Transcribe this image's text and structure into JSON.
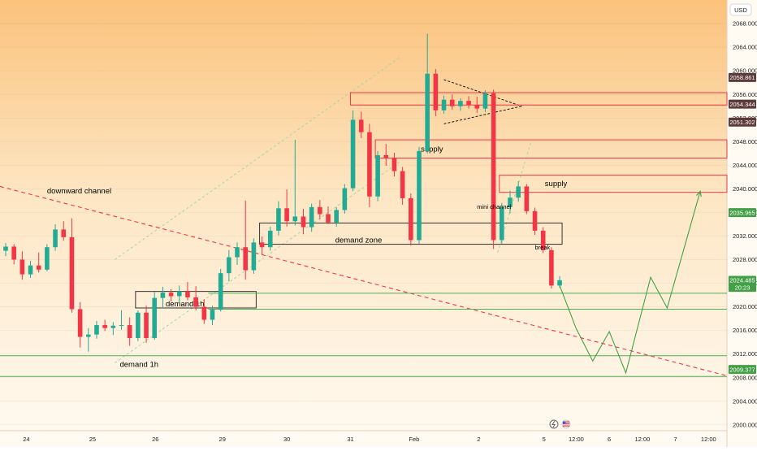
{
  "currency_label": "USD",
  "colors": {
    "up": "#22ab94",
    "down": "#f23645",
    "supply": "#f23645",
    "demand": "#4caf50",
    "channel": "#a5d6a7",
    "downward_channel": "#f23645",
    "price_badge_dark": "#5d3a3a",
    "price_badge_green": "#43a047"
  },
  "chart_data": {
    "type": "candlestick",
    "y_range": [
      1999,
      2072
    ],
    "y_ticks": [
      "2068.000",
      "2064.000",
      "2060.000",
      "2056.000",
      "2052.000",
      "2048.000",
      "2044.000",
      "2040.000",
      "2036.000",
      "2032.000",
      "2028.000",
      "2024.000",
      "2020.000",
      "2016.000",
      "2012.000",
      "2008.000",
      "2004.000",
      "2000.000"
    ],
    "x_ticks": [
      "24",
      "25",
      "26",
      "29",
      "30",
      "31",
      "Feb",
      "2",
      "5",
      "12:00",
      "6",
      "12:00",
      "7",
      "12:00"
    ],
    "price_badges": [
      {
        "label": "2058.861",
        "value": 2058.861,
        "style": "dark"
      },
      {
        "label": "2054.344",
        "value": 2054.344,
        "style": "dark"
      },
      {
        "label": "2051.302",
        "value": 2051.302,
        "style": "dark"
      },
      {
        "label": "2035.965",
        "value": 2035.965,
        "style": "green"
      },
      {
        "label": "2024.485",
        "value": 2024.485,
        "style": "green"
      },
      {
        "label": "20:23",
        "value": 2023.3,
        "style": "green"
      },
      {
        "label": "2009.377",
        "value": 2009.377,
        "style": "green"
      }
    ],
    "zones": [
      {
        "label": "",
        "kind": "supply",
        "from_index": 42,
        "y_top": 2056.3,
        "y_bottom": 2054.2
      },
      {
        "label": "supply",
        "kind": "supply",
        "from_index": 45,
        "y_top": 2048.3,
        "y_bottom": 2045.2
      },
      {
        "label": "supply",
        "kind": "supply",
        "from_index": 60,
        "y_top": 2042.3,
        "y_bottom": 2039.4
      },
      {
        "label": "demand zone",
        "kind": "neutral",
        "from_index": 31,
        "to_index": 67,
        "y_top": 2034.2,
        "y_bottom": 2030.6
      },
      {
        "label": "demand 1h",
        "kind": "neutral",
        "from_index": 16,
        "to_index": 30,
        "y_top": 2022.6,
        "y_bottom": 2019.8
      }
    ],
    "horizontal_lines": [
      {
        "label": "",
        "value": 2022.3,
        "kind": "demand"
      },
      {
        "label": "",
        "value": 2019.6,
        "kind": "demand"
      },
      {
        "label": "",
        "value": 2011.7,
        "kind": "demand"
      },
      {
        "label": "demand 1h",
        "value": 2008.2,
        "kind": "demand"
      }
    ],
    "annotations": [
      {
        "text": "downward channel",
        "index": 5,
        "value": 2039.2
      },
      {
        "text": "mini channel",
        "index": 57,
        "value": 2036.6
      },
      {
        "text": "break",
        "index": 64,
        "value": 2029.7
      }
    ],
    "candles": [
      {
        "o": 2029.5,
        "h": 2030.8,
        "l": 2028.6,
        "c": 2030.2
      },
      {
        "o": 2030.2,
        "h": 2030.6,
        "l": 2027.2,
        "c": 2028.0
      },
      {
        "o": 2028.0,
        "h": 2029.4,
        "l": 2024.6,
        "c": 2025.5
      },
      {
        "o": 2025.5,
        "h": 2027.8,
        "l": 2024.9,
        "c": 2027.0
      },
      {
        "o": 2027.0,
        "h": 2029.2,
        "l": 2025.8,
        "c": 2026.3
      },
      {
        "o": 2026.3,
        "h": 2030.6,
        "l": 2026.0,
        "c": 2030.1
      },
      {
        "o": 2030.1,
        "h": 2034.0,
        "l": 2029.5,
        "c": 2033.1
      },
      {
        "o": 2033.1,
        "h": 2034.5,
        "l": 2031.2,
        "c": 2031.8
      },
      {
        "o": 2031.8,
        "h": 2035.0,
        "l": 2019.0,
        "c": 2019.6
      },
      {
        "o": 2019.6,
        "h": 2020.8,
        "l": 2013.1,
        "c": 2014.9
      },
      {
        "o": 2014.9,
        "h": 2016.4,
        "l": 2012.4,
        "c": 2015.3
      },
      {
        "o": 2015.3,
        "h": 2017.6,
        "l": 2014.6,
        "c": 2016.9
      },
      {
        "o": 2016.9,
        "h": 2017.8,
        "l": 2015.9,
        "c": 2016.4
      },
      {
        "o": 2016.4,
        "h": 2017.4,
        "l": 2015.2,
        "c": 2016.8
      },
      {
        "o": 2016.8,
        "h": 2019.4,
        "l": 2016.1,
        "c": 2016.9
      },
      {
        "o": 2016.9,
        "h": 2018.2,
        "l": 2013.4,
        "c": 2014.7
      },
      {
        "o": 2014.7,
        "h": 2019.4,
        "l": 2014.2,
        "c": 2019.0
      },
      {
        "o": 2019.0,
        "h": 2020.2,
        "l": 2013.9,
        "c": 2014.7
      },
      {
        "o": 2014.7,
        "h": 2022.5,
        "l": 2014.4,
        "c": 2021.5
      },
      {
        "o": 2021.5,
        "h": 2023.4,
        "l": 2019.7,
        "c": 2022.4
      },
      {
        "o": 2022.4,
        "h": 2023.0,
        "l": 2020.9,
        "c": 2021.8
      },
      {
        "o": 2021.8,
        "h": 2023.6,
        "l": 2020.6,
        "c": 2022.6
      },
      {
        "o": 2022.6,
        "h": 2024.2,
        "l": 2021.1,
        "c": 2021.6
      },
      {
        "o": 2021.6,
        "h": 2023.5,
        "l": 2019.4,
        "c": 2020.0
      },
      {
        "o": 2020.0,
        "h": 2021.3,
        "l": 2017.1,
        "c": 2017.8
      },
      {
        "o": 2017.8,
        "h": 2020.2,
        "l": 2016.9,
        "c": 2019.5
      },
      {
        "o": 2019.5,
        "h": 2026.4,
        "l": 2019.2,
        "c": 2025.7
      },
      {
        "o": 2025.7,
        "h": 2029.6,
        "l": 2024.3,
        "c": 2028.4
      },
      {
        "o": 2028.4,
        "h": 2030.9,
        "l": 2027.1,
        "c": 2030.1
      },
      {
        "o": 2030.1,
        "h": 2038.0,
        "l": 2024.6,
        "c": 2026.2
      },
      {
        "o": 2026.2,
        "h": 2031.6,
        "l": 2025.6,
        "c": 2030.9
      },
      {
        "o": 2030.9,
        "h": 2031.9,
        "l": 2028.9,
        "c": 2030.1
      },
      {
        "o": 2030.1,
        "h": 2033.6,
        "l": 2029.5,
        "c": 2032.9
      },
      {
        "o": 2032.9,
        "h": 2037.9,
        "l": 2032.1,
        "c": 2036.7
      },
      {
        "o": 2036.7,
        "h": 2039.9,
        "l": 2033.6,
        "c": 2034.5
      },
      {
        "o": 2034.5,
        "h": 2048.3,
        "l": 2033.8,
        "c": 2035.3
      },
      {
        "o": 2035.3,
        "h": 2036.6,
        "l": 2032.3,
        "c": 2033.5
      },
      {
        "o": 2033.5,
        "h": 2037.5,
        "l": 2032.7,
        "c": 2036.9
      },
      {
        "o": 2036.9,
        "h": 2038.1,
        "l": 2034.8,
        "c": 2035.7
      },
      {
        "o": 2035.7,
        "h": 2037.0,
        "l": 2034.0,
        "c": 2034.3
      },
      {
        "o": 2034.3,
        "h": 2036.9,
        "l": 2033.6,
        "c": 2036.4
      },
      {
        "o": 2036.4,
        "h": 2040.8,
        "l": 2035.8,
        "c": 2040.1
      },
      {
        "o": 2040.1,
        "h": 2053.3,
        "l": 2039.6,
        "c": 2051.7
      },
      {
        "o": 2051.7,
        "h": 2053.1,
        "l": 2048.6,
        "c": 2049.6
      },
      {
        "o": 2049.6,
        "h": 2051.0,
        "l": 2036.9,
        "c": 2038.7
      },
      {
        "o": 2038.7,
        "h": 2046.4,
        "l": 2037.9,
        "c": 2045.7
      },
      {
        "o": 2045.7,
        "h": 2047.6,
        "l": 2043.9,
        "c": 2045.2
      },
      {
        "o": 2045.2,
        "h": 2046.1,
        "l": 2042.1,
        "c": 2043.0
      },
      {
        "o": 2043.0,
        "h": 2043.7,
        "l": 2037.3,
        "c": 2038.4
      },
      {
        "o": 2038.4,
        "h": 2039.2,
        "l": 2030.4,
        "c": 2031.3
      },
      {
        "o": 2031.3,
        "h": 2047.1,
        "l": 2030.7,
        "c": 2046.4
      },
      {
        "o": 2046.4,
        "h": 2066.3,
        "l": 2046.0,
        "c": 2059.5
      },
      {
        "o": 2059.5,
        "h": 2060.3,
        "l": 2052.3,
        "c": 2053.3
      },
      {
        "o": 2053.3,
        "h": 2055.8,
        "l": 2052.7,
        "c": 2055.1
      },
      {
        "o": 2055.1,
        "h": 2056.0,
        "l": 2053.4,
        "c": 2054.0
      },
      {
        "o": 2054.0,
        "h": 2055.3,
        "l": 2053.2,
        "c": 2054.9
      },
      {
        "o": 2054.9,
        "h": 2055.7,
        "l": 2053.6,
        "c": 2054.2
      },
      {
        "o": 2054.2,
        "h": 2055.6,
        "l": 2052.9,
        "c": 2053.6
      },
      {
        "o": 2053.6,
        "h": 2056.7,
        "l": 2053.0,
        "c": 2056.2
      },
      {
        "o": 2056.2,
        "h": 2056.8,
        "l": 2029.8,
        "c": 2031.3
      },
      {
        "o": 2031.3,
        "h": 2037.6,
        "l": 2030.7,
        "c": 2036.9
      },
      {
        "o": 2036.9,
        "h": 2039.7,
        "l": 2035.8,
        "c": 2038.5
      },
      {
        "o": 2038.5,
        "h": 2041.3,
        "l": 2037.8,
        "c": 2040.4
      },
      {
        "o": 2040.4,
        "h": 2040.8,
        "l": 2035.7,
        "c": 2036.2
      },
      {
        "o": 2036.2,
        "h": 2036.8,
        "l": 2032.2,
        "c": 2032.9
      },
      {
        "o": 2032.9,
        "h": 2033.5,
        "l": 2029.1,
        "c": 2029.6
      },
      {
        "o": 2029.6,
        "h": 2030.1,
        "l": 2023.1,
        "c": 2023.6
      },
      {
        "o": 2023.6,
        "h": 2025.2,
        "l": 2023.2,
        "c": 2024.5
      }
    ],
    "forecast_path": [
      {
        "index": 67,
        "value": 2023.6
      },
      {
        "index": 69,
        "value": 2016.3
      },
      {
        "index": 71,
        "value": 2010.8
      },
      {
        "index": 73,
        "value": 2015.8
      },
      {
        "index": 75,
        "value": 2008.8
      },
      {
        "index": 78,
        "value": 2025.0
      },
      {
        "index": 80,
        "value": 2019.8
      },
      {
        "index": 84,
        "value": 2039.6
      }
    ]
  }
}
